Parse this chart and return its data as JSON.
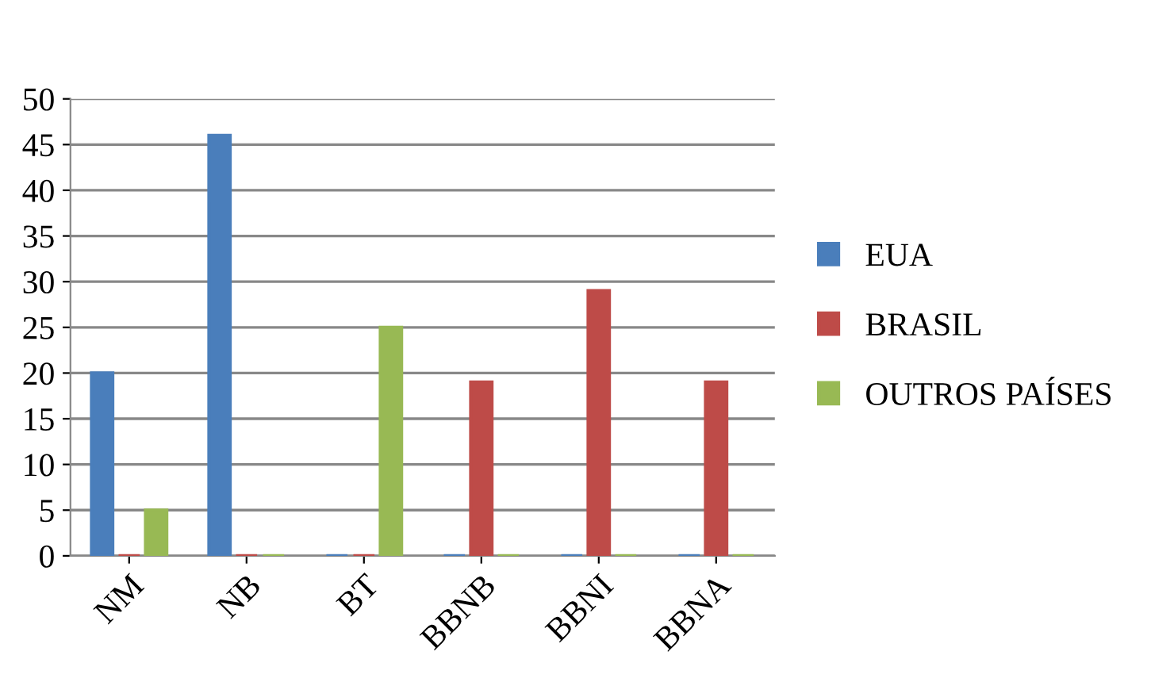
{
  "chart_data": {
    "type": "bar",
    "categories": [
      "NM",
      "NB",
      "BT",
      "BBNB",
      "BBNI",
      "BBNA"
    ],
    "series": [
      {
        "name": "EUA",
        "color": "#4a7ebb",
        "values": [
          20,
          46,
          0,
          0,
          0,
          0
        ]
      },
      {
        "name": "BRASIL",
        "color": "#be4b48",
        "values": [
          0,
          0,
          0,
          19,
          29,
          19
        ]
      },
      {
        "name": "OUTROS PAÍSES",
        "color": "#98b954",
        "values": [
          5,
          0,
          25,
          0,
          0,
          0
        ]
      }
    ],
    "ylim": [
      0,
      50
    ],
    "yticks": [
      0,
      5,
      10,
      15,
      20,
      25,
      30,
      35,
      40,
      45,
      50
    ],
    "grid": "y",
    "legend": "right"
  }
}
